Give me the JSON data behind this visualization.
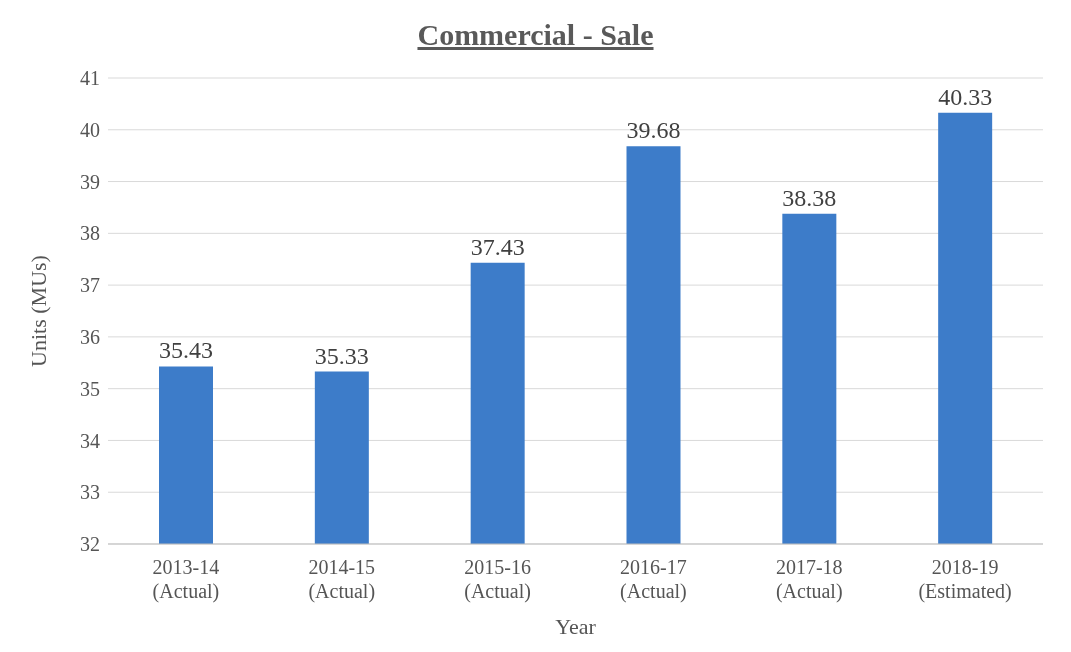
{
  "chart_data": {
    "type": "bar",
    "title": "Commercial - Sale",
    "xlabel": "Year",
    "ylabel": "Units (MUs)",
    "categories": [
      "2013-14 (Actual)",
      "2014-15 (Actual)",
      "2015-16 (Actual)",
      "2016-17 (Actual)",
      "2017-18 (Actual)",
      "2018-19 (Estimated)"
    ],
    "values": [
      35.43,
      35.33,
      37.43,
      39.68,
      38.38,
      40.33
    ],
    "color": "#3d7cc9",
    "ylim": [
      32,
      41
    ],
    "yticks": [
      32,
      33,
      34,
      35,
      36,
      37,
      38,
      39,
      40,
      41
    ],
    "grid": "y",
    "data_labels": true
  }
}
